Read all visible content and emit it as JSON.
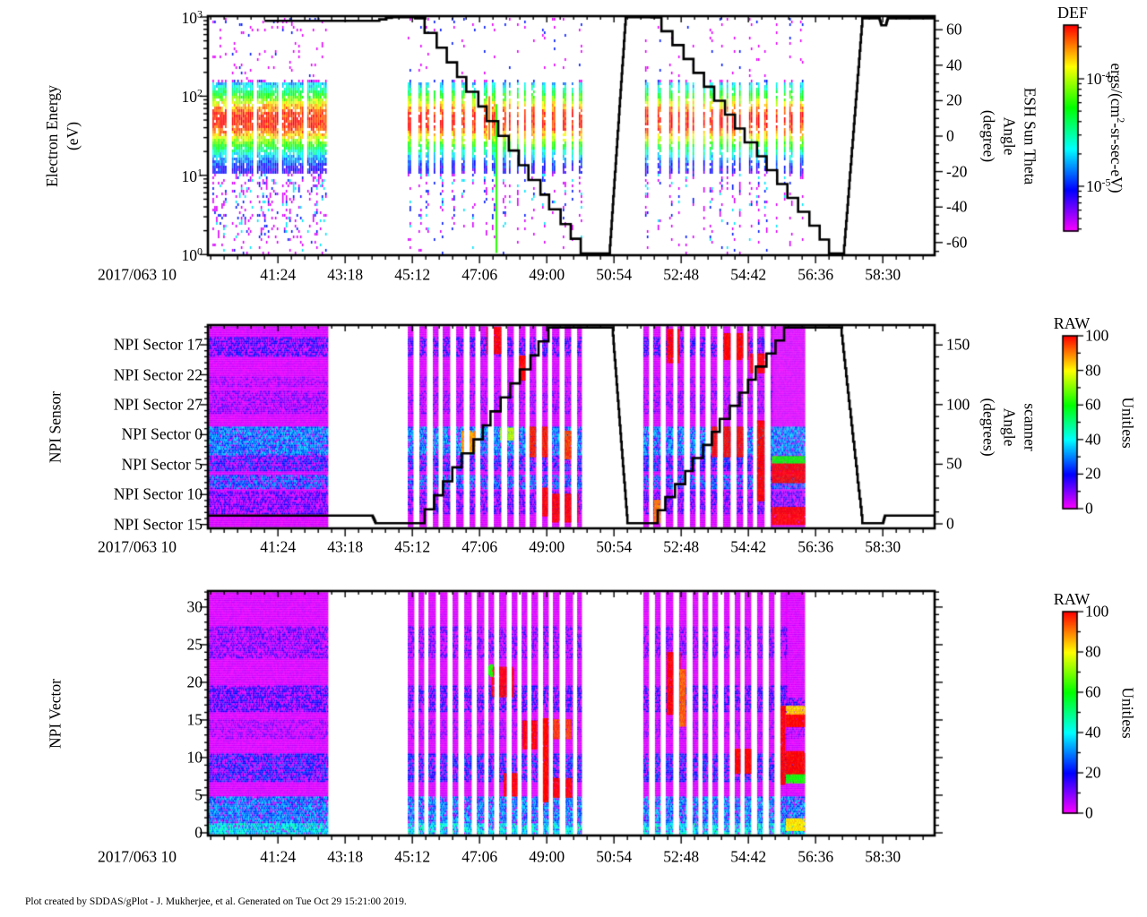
{
  "page": {
    "footer": "Plot created by SDDAS/gPlot - J. Mukherjee, et al.  Generated on Tue Oct 29 15:21:00 2019."
  },
  "colors": {
    "background": "#ffffff",
    "axis": "#000000",
    "overlay_line": "#000000",
    "colormap_low_to_high": [
      "#ff00ff",
      "#0000ff",
      "#00ffff",
      "#00ff00",
      "#ffff00",
      "#ff0000"
    ]
  },
  "chart_data": {
    "type": "heatmap",
    "description": "SDDAS/gPlot three-panel time spectrogram stack: electron energy differential energy flux, NPI sensor sectors, NPI vector channels, with overlaid angle line plots.",
    "shared_x": {
      "date_label": "2017/063 10",
      "range_min": [
        39.42,
        59.97
      ],
      "ticks": [
        {
          "label": "41:24",
          "min": 41.4
        },
        {
          "label": "43:18",
          "min": 43.3
        },
        {
          "label": "45:12",
          "min": 45.2
        },
        {
          "label": "47:06",
          "min": 47.1
        },
        {
          "label": "49:00",
          "min": 49.0
        },
        {
          "label": "50:54",
          "min": 50.9
        },
        {
          "label": "52:48",
          "min": 52.8
        },
        {
          "label": "54:42",
          "min": 54.7
        },
        {
          "label": "56:36",
          "min": 56.6
        },
        {
          "label": "58:30",
          "min": 58.5
        }
      ]
    },
    "panels": [
      {
        "id": "electron-energy",
        "ylabel_lines": [
          "Electron Energy",
          "(eV)"
        ],
        "y_scale": "log",
        "y_decades": [
          "3",
          "2",
          "1",
          "0"
        ],
        "right": {
          "label_lines": [
            "ESH Sun Theta",
            "Angle",
            "(degree)"
          ],
          "ticks": [
            60,
            40,
            20,
            0,
            -20,
            -40,
            -60
          ],
          "minor_step": 5,
          "range": [
            -67,
            68.7
          ]
        },
        "line": {
          "name": "esh-sun-theta-angle",
          "step_min": 0.3,
          "segments": [
            [
              "flat",
              41.02,
              44.11,
              66,
              66
            ],
            [
              "stair",
              44.11,
              44.62,
              66,
              68.6
            ],
            [
              "flat",
              44.62,
              45.28,
              68.6,
              68.6
            ],
            [
              "stair",
              45.28,
              49.96,
              67.5,
              -66
            ],
            [
              "flat",
              49.96,
              50.77,
              -66,
              -66
            ],
            [
              "ramp",
              50.77,
              51.23,
              -66,
              68.6
            ],
            [
              "flat",
              51.23,
              51.96,
              68.6,
              68.6
            ],
            [
              "stair",
              51.96,
              56.98,
              68,
              -66
            ],
            [
              "flat",
              56.98,
              57.39,
              -66,
              -66
            ],
            [
              "ramp",
              57.39,
              57.92,
              -66,
              67.5
            ],
            [
              "flat",
              57.92,
              58.4,
              67.5,
              67.5
            ],
            [
              "ramp",
              58.4,
              58.46,
              67.5,
              63.5
            ],
            [
              "flat",
              58.46,
              58.58,
              63.5,
              63.5
            ],
            [
              "ramp",
              58.58,
              58.64,
              63.5,
              67.5
            ],
            [
              "flat",
              58.64,
              59.95,
              67.5,
              67.5
            ]
          ]
        },
        "band": {
          "center_log": 1.7,
          "sigma": 0.42,
          "solid_log_range": [
            1.02,
            2.17
          ]
        },
        "dense_blocks_min": [
          [
            39.55,
            39.95
          ],
          [
            40.1,
            40.66
          ],
          [
            40.81,
            41.37
          ],
          [
            41.52,
            42.08
          ],
          [
            42.23,
            42.74
          ]
        ],
        "thin_column_spans_min": [
          [
            45.07,
            49.96
          ],
          [
            51.78,
            56.28
          ]
        ],
        "anomaly_lines": [
          {
            "t_min": 47.55,
            "log0": 1.9,
            "log1": 0.02,
            "val": 0.63
          },
          {
            "t_min": 47.35,
            "log0": 2.0,
            "log1": 1.45,
            "val": 0.9
          }
        ],
        "colorbar": {
          "title": "DEF",
          "scale": "log",
          "unit_pre": "ergs/(cm",
          "unit_sup": "2",
          "unit_post": "-sr-sec-eV)",
          "decade_labels": [
            "-4",
            "-5"
          ]
        }
      },
      {
        "id": "npi-sensor",
        "ylabel_lines": [
          "NPI Sensor"
        ],
        "ytick_labels": [
          "NPI Sector 17",
          "NPI Sector 22",
          "NPI Sector 27",
          "NPI Sector 0",
          "NPI Sector 5",
          "NPI Sector 10",
          "NPI Sector 15"
        ],
        "ytick_fr": [
          0.097,
          0.245,
          0.392,
          0.539,
          0.686,
          0.833,
          0.981
        ],
        "minor_slot_fr": 0.029467,
        "right": {
          "label_lines": [
            "scanner",
            "Angle",
            "(degrees)"
          ],
          "ticks": [
            150,
            100,
            50,
            0
          ],
          "minor_step": 10,
          "range": [
            -3.8,
            168
          ]
        },
        "line": {
          "name": "scanner-angle",
          "step_min": 0.26,
          "segments": [
            [
              "flat",
              39.43,
              44.06,
              7,
              7
            ],
            [
              "ramp",
              44.06,
              44.16,
              7,
              0.5
            ],
            [
              "flat",
              44.16,
              45.28,
              0.5,
              0.5
            ],
            [
              "stair",
              45.28,
              49.05,
              0.5,
              166
            ],
            [
              "flat",
              49.05,
              50.85,
              166,
              166
            ],
            [
              "ramp",
              50.85,
              51.28,
              166,
              0.5
            ],
            [
              "flat",
              51.28,
              51.86,
              0.5,
              0.5
            ],
            [
              "stair",
              51.86,
              55.71,
              0.5,
              166
            ],
            [
              "flat",
              55.71,
              57.31,
              166,
              166
            ],
            [
              "ramp",
              57.31,
              57.92,
              166,
              0.5
            ],
            [
              "flat",
              57.92,
              58.5,
              0.5,
              0.5
            ],
            [
              "ramp",
              58.5,
              58.56,
              0.5,
              7
            ],
            [
              "flat",
              58.56,
              59.95,
              7,
              7
            ]
          ]
        },
        "solid_blocks": [
          [
            39.445,
            42.79,
            -1
          ],
          [
            55.36,
            56.29,
            0.5
          ]
        ],
        "stripe_spans": [
          [
            45.07,
            49.96
          ],
          [
            51.73,
            55.36
          ]
        ],
        "bands": [
          [
            0.053,
            0.15,
            0.18,
            0.55
          ],
          [
            0.25,
            0.3,
            0.1,
            0.35
          ],
          [
            0.32,
            0.43,
            0.12,
            0.4
          ],
          [
            0.497,
            0.634,
            0.3,
            0.85
          ],
          [
            0.64,
            0.72,
            0.22,
            0.6
          ],
          [
            0.73,
            0.805,
            0.27,
            0.7
          ],
          [
            0.815,
            0.93,
            0.16,
            0.5
          ]
        ],
        "patches": [
          [
            47.3,
            47.78,
            0.01,
            0.14,
            1.0
          ],
          [
            48.06,
            48.51,
            0.15,
            0.27,
            1.0
          ],
          [
            48.46,
            49.05,
            0.5,
            0.645,
            0.98
          ],
          [
            46.59,
            46.99,
            0.52,
            0.62,
            0.88
          ],
          [
            48.82,
            49.1,
            0.8,
            0.94,
            1.0
          ],
          [
            49.15,
            49.88,
            0.83,
            0.97,
            1.0
          ],
          [
            49.48,
            49.86,
            0.52,
            0.66,
            0.95
          ],
          [
            47.68,
            48.08,
            0.505,
            0.56,
            0.75
          ],
          [
            52.39,
            52.72,
            0.02,
            0.18,
            1.0
          ],
          [
            54.01,
            54.67,
            0.04,
            0.17,
            1.0
          ],
          [
            54.75,
            55.13,
            0.14,
            0.23,
            1.0
          ],
          [
            53.66,
            54.57,
            0.5,
            0.645,
            1.0
          ],
          [
            54.92,
            55.13,
            0.47,
            0.86,
            1.0
          ],
          [
            55.36,
            56.29,
            0.68,
            0.775,
            1.0
          ],
          [
            55.36,
            56.29,
            0.895,
            0.975,
            1.0
          ],
          [
            55.36,
            56.29,
            0.645,
            0.675,
            0.62
          ],
          [
            52.03,
            52.34,
            0.86,
            0.97,
            0.9
          ]
        ],
        "colorbar": {
          "title": "RAW",
          "scale": "linear",
          "unit": "Unitless",
          "ticks": [
            100,
            80,
            60,
            40,
            20,
            0
          ],
          "minor_step": 10,
          "range": [
            0,
            100
          ]
        }
      },
      {
        "id": "npi-vector",
        "ylabel_lines": [
          "NPI Vector"
        ],
        "ytick_labels": [
          "30",
          "25",
          "20",
          "15",
          "10",
          "5",
          "0"
        ],
        "ytick_fr": [
          0.066,
          0.22,
          0.374,
          0.527,
          0.681,
          0.835,
          0.989
        ],
        "minor_slot_fr": 0.03078,
        "right": {
          "label_lines": [],
          "ticks": [],
          "minor_step": 0,
          "range": [
            0,
            32
          ]
        },
        "line": null,
        "solid_blocks": [
          [
            39.445,
            42.79,
            -1
          ],
          [
            55.76,
            56.29,
            0.435
          ]
        ],
        "stripe_spans": [
          [
            45.07,
            49.96
          ],
          [
            51.73,
            55.76
          ]
        ],
        "bands": [
          [
            0.14,
            0.27,
            0.14,
            0.45
          ],
          [
            0.385,
            0.495,
            0.18,
            0.55
          ],
          [
            0.52,
            0.6,
            0.1,
            0.35
          ],
          [
            0.66,
            0.78,
            0.22,
            0.6
          ],
          [
            0.835,
            0.95,
            0.3,
            0.8
          ],
          [
            0.95,
            1.0,
            0.38,
            0.9
          ]
        ],
        "patches": [
          [
            47.43,
            48.06,
            0.31,
            0.43,
            1.0
          ],
          [
            47.78,
            48.23,
            0.745,
            0.835,
            1.0
          ],
          [
            48.31,
            48.71,
            0.53,
            0.645,
            1.0
          ],
          [
            48.84,
            49.07,
            0.52,
            0.86,
            1.0
          ],
          [
            49.05,
            49.7,
            0.765,
            0.845,
            1.0
          ],
          [
            49.05,
            49.68,
            0.525,
            0.6,
            0.95
          ],
          [
            47.22,
            47.47,
            0.3,
            0.35,
            0.62
          ],
          [
            52.39,
            52.75,
            0.25,
            0.5,
            1.0
          ],
          [
            52.72,
            52.92,
            0.32,
            0.55,
            0.92
          ],
          [
            54.19,
            54.85,
            0.645,
            0.745,
            1.0
          ],
          [
            55.43,
            55.73,
            0.47,
            0.79,
            1.0
          ],
          [
            55.76,
            56.29,
            0.47,
            0.505,
            0.83
          ],
          [
            55.76,
            56.29,
            0.505,
            0.555,
            1.0
          ],
          [
            55.76,
            56.29,
            0.655,
            0.75,
            1.0
          ],
          [
            55.76,
            56.29,
            0.75,
            0.78,
            0.62
          ],
          [
            55.76,
            56.29,
            0.93,
            0.975,
            0.82
          ]
        ],
        "colorbar": {
          "title": "RAW",
          "scale": "linear",
          "unit": "Unitless",
          "ticks": [
            100,
            80,
            60,
            40,
            20,
            0
          ],
          "minor_step": 10,
          "range": [
            0,
            100
          ]
        }
      }
    ]
  }
}
